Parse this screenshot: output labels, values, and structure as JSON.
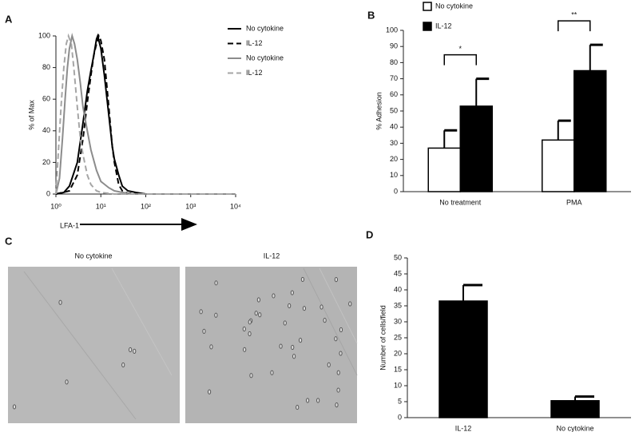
{
  "chart_data": [
    {
      "type": "line",
      "label": "A",
      "ylabel": "% of Max",
      "xlabel": "LFA-1",
      "xscale": "log",
      "xlim": [
        1,
        10000
      ],
      "xticks": [
        {
          "value": 1,
          "label": "10⁰"
        },
        {
          "value": 10,
          "label": "10¹"
        },
        {
          "value": 100,
          "label": "10²"
        },
        {
          "value": 1000,
          "label": "10³"
        },
        {
          "value": 10000,
          "label": "10⁴"
        }
      ],
      "ylim": [
        0,
        100
      ],
      "yticks": [
        0,
        20,
        40,
        60,
        80,
        100
      ],
      "series": [
        {
          "name": "No cytokine",
          "color": "#000000",
          "linestyle": "solid",
          "x": [
            1,
            1.5,
            2,
            3,
            4,
            5,
            6,
            7,
            8,
            8.5,
            10,
            12,
            15,
            18,
            20,
            25,
            30,
            40,
            60,
            100,
            1000,
            10000
          ],
          "values": [
            0,
            1,
            5,
            20,
            45,
            65,
            78,
            88,
            98,
            100,
            92,
            75,
            50,
            30,
            22,
            12,
            5,
            2,
            1,
            0,
            0,
            0
          ]
        },
        {
          "name": "IL-12",
          "color": "#000000",
          "linestyle": "dashed",
          "x": [
            1,
            2,
            3,
            4,
            5,
            6,
            7,
            8,
            9,
            10,
            12,
            15,
            18,
            20,
            25,
            30,
            40,
            100,
            10000
          ],
          "values": [
            0,
            2,
            12,
            35,
            58,
            75,
            88,
            95,
            100,
            97,
            85,
            55,
            30,
            20,
            6,
            2,
            0.5,
            0,
            0
          ]
        },
        {
          "name": "No cytokine",
          "color": "#8c8c8c",
          "linestyle": "solid",
          "x": [
            1,
            1.2,
            1.4,
            1.6,
            1.8,
            2,
            2.3,
            2.6,
            3,
            3.5,
            4,
            5,
            6,
            8,
            10,
            15,
            20,
            30,
            50,
            10000
          ],
          "values": [
            0,
            10,
            35,
            60,
            80,
            92,
            100,
            95,
            85,
            70,
            55,
            40,
            28,
            15,
            8,
            4,
            2,
            1,
            0,
            0
          ]
        },
        {
          "name": "IL-12",
          "color": "#a6a6a6",
          "linestyle": "dashed",
          "x": [
            1,
            1.1,
            1.3,
            1.5,
            1.7,
            1.9,
            2.2,
            2.5,
            3,
            3.5,
            4,
            5,
            6,
            8,
            10,
            20,
            10000
          ],
          "values": [
            0,
            20,
            55,
            80,
            95,
            100,
            95,
            80,
            55,
            35,
            25,
            12,
            6,
            2,
            1,
            0,
            0
          ]
        }
      ]
    },
    {
      "type": "bar",
      "label": "B",
      "ylabel": "% Adhesion",
      "categories": [
        "No treatment",
        "PMA"
      ],
      "series": [
        {
          "name": "No  cytokine",
          "color": "#ffffff",
          "values": [
            27,
            32
          ],
          "errors": [
            11,
            12
          ]
        },
        {
          "name": "IL-12",
          "color": "#000000",
          "values": [
            53,
            75
          ],
          "errors": [
            17,
            16
          ]
        }
      ],
      "annotations": [
        "*",
        "**"
      ],
      "ylim": [
        0,
        100
      ],
      "yticks": [
        0,
        10,
        20,
        30,
        40,
        50,
        60,
        70,
        80,
        90,
        100
      ]
    },
    {
      "type": "bar",
      "label": "D",
      "ylabel": "Number of cells/field",
      "categories": [
        "IL-12",
        "No cytokine"
      ],
      "values": [
        36.5,
        5.3
      ],
      "errors": [
        5,
        1.3
      ],
      "color": "#000000",
      "ylim": [
        0,
        50
      ],
      "yticks": [
        0,
        5,
        10,
        15,
        20,
        25,
        30,
        35,
        40,
        45,
        50
      ]
    }
  ],
  "panel_c": {
    "label": "C",
    "images": [
      {
        "title": "No cytokine"
      },
      {
        "title": "IL-12"
      }
    ]
  }
}
